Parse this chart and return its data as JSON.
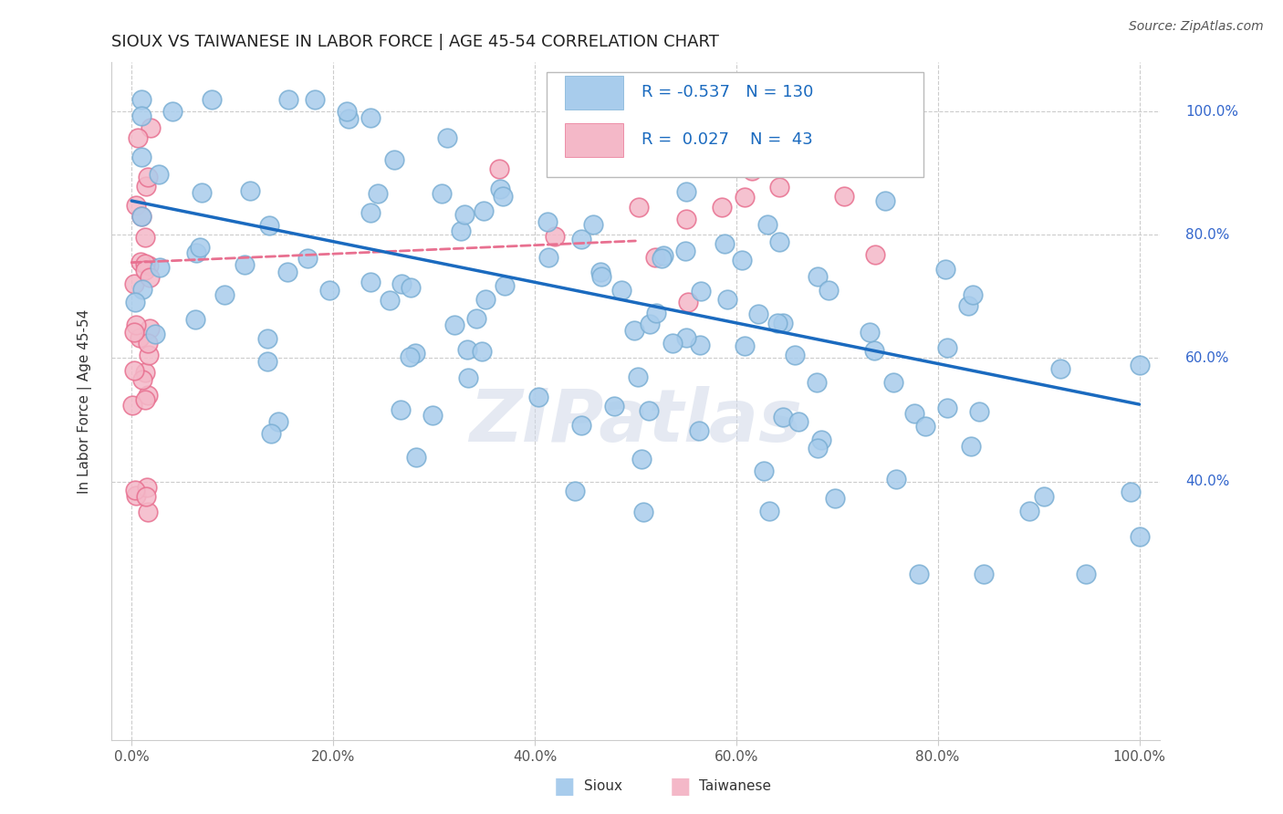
{
  "title": "SIOUX VS TAIWANESE IN LABOR FORCE | AGE 45-54 CORRELATION CHART",
  "source_text": "Source: ZipAtlas.com",
  "ylabel": "In Labor Force | Age 45-54",
  "watermark": "ZIPatlas",
  "legend_R_sioux": "-0.537",
  "legend_N_sioux": "130",
  "legend_R_taiwanese": "0.027",
  "legend_N_taiwanese": "43",
  "xlim": [
    -0.02,
    1.02
  ],
  "ylim": [
    -0.02,
    1.08
  ],
  "xticks": [
    0.0,
    0.2,
    0.4,
    0.6,
    0.8,
    1.0
  ],
  "yticks": [
    0.4,
    0.6,
    0.8,
    1.0
  ],
  "xtick_labels": [
    "0.0%",
    "20.0%",
    "40.0%",
    "60.0%",
    "80.0%",
    "100.0%"
  ],
  "ytick_labels_right": [
    "40.0%",
    "60.0%",
    "80.0%",
    "100.0%"
  ],
  "sioux_color": "#a8ccec",
  "sioux_edge_color": "#7bafd4",
  "taiwanese_color": "#f4b8c8",
  "taiwanese_edge_color": "#e87090",
  "trend_sioux_color": "#1a6abf",
  "trend_taiwanese_color": "#e87090",
  "background_color": "#ffffff",
  "grid_color": "#cccccc",
  "title_fontsize": 13,
  "tick_fontsize": 11,
  "ylabel_fontsize": 11
}
